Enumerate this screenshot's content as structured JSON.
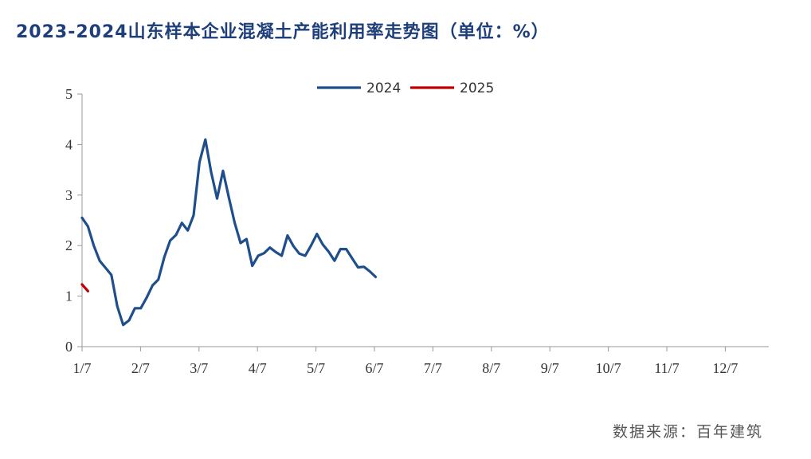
{
  "header": {
    "title": "2023-2024山东样本企业混凝土产能利用率走势图（单位：%）"
  },
  "footer": {
    "source": "数据来源：百年建筑"
  },
  "colors": {
    "title": "#1f3f7a",
    "series_2024": "#1f4e8c",
    "series_2025": "#c00000",
    "axis": "#999999"
  },
  "chart_data": {
    "type": "line",
    "title": "2023-2024山东样本企业混凝土产能利用率走势图（单位：%）",
    "xlabel": "",
    "ylabel": "",
    "ylim": [
      0,
      5
    ],
    "yticks": [
      "0",
      "1",
      "2",
      "3",
      "4",
      "5"
    ],
    "xticks": [
      "1/7",
      "2/7",
      "3/7",
      "4/7",
      "5/7",
      "6/7",
      "7/7",
      "8/7",
      "9/7",
      "10/7",
      "11/7",
      "12/7"
    ],
    "legend": {
      "placement": "top-center",
      "entries": [
        "2024",
        "2025"
      ]
    },
    "grid": false,
    "series": [
      {
        "name": "2024",
        "values": [
          2.55,
          2.38,
          2.0,
          1.7,
          1.56,
          1.42,
          0.8,
          0.43,
          0.52,
          0.76,
          0.76,
          0.97,
          1.21,
          1.33,
          1.77,
          2.1,
          2.21,
          2.45,
          2.3,
          2.6,
          3.65,
          4.1,
          3.45,
          2.93,
          3.48,
          2.95,
          2.45,
          2.05,
          2.13,
          1.6,
          1.8,
          1.85,
          1.96,
          1.87,
          1.8,
          2.2,
          1.99,
          1.84,
          1.8,
          2.0,
          2.23,
          2.02,
          1.88,
          1.7,
          1.93,
          1.93,
          1.75,
          1.57,
          1.58,
          1.49,
          1.38
        ]
      },
      {
        "name": "2025",
        "values": [
          1.23,
          1.1
        ]
      }
    ]
  }
}
